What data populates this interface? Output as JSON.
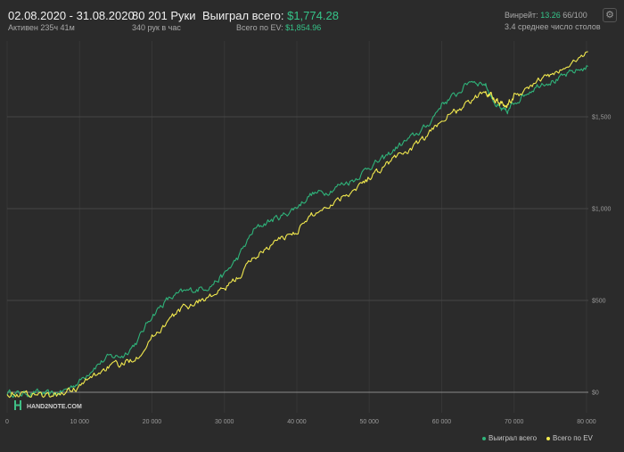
{
  "header": {
    "date_range": "02.08.2020 - 31.08.2020",
    "active_time": "Активен 235ч 41м",
    "hands": "80 201 Руки",
    "hands_per_hour": "340 рук в час",
    "won_label": "Выиграл всего:",
    "won_value": "$1,774.28",
    "ev_label": "Всего по EV:",
    "ev_value": "$1,854.96",
    "winrate_label": "Винрейт:",
    "winrate_value": "13.26",
    "winrate_suffix": "66/100",
    "tables": "3.4 среднее число столов",
    "settings_icon": "gear-icon"
  },
  "watermark": {
    "text": "HAND2NOTE.COM",
    "icon": "h2n-logo-icon"
  },
  "colors": {
    "won": "#2fb37a",
    "ev": "#f2e94e",
    "background": "#2b2b2b",
    "grid": "#3a3a3a"
  },
  "chart_data": {
    "type": "line",
    "x_ticks": [
      0,
      10000,
      20000,
      30000,
      40000,
      50000,
      60000,
      70000,
      80000
    ],
    "x_tick_labels": [
      "0",
      "10 000",
      "20 000",
      "30 000",
      "40 000",
      "50 000",
      "60 000",
      "70 000",
      "80 000"
    ],
    "y_ticks": [
      0,
      500,
      1000,
      1500
    ],
    "y_tick_labels": [
      "$0",
      "$500",
      "$1,000",
      "$1,500"
    ],
    "xlim": [
      0,
      80201
    ],
    "ylim": [
      -50,
      1900
    ],
    "grid": true,
    "legend_position": "bottom-right",
    "series": [
      {
        "name": "Выиграл всего",
        "x": [
          0,
          2000,
          4000,
          6000,
          8000,
          10000,
          12000,
          14000,
          16000,
          18000,
          20000,
          22000,
          24000,
          26000,
          28000,
          30000,
          32000,
          34000,
          36000,
          38000,
          40000,
          42000,
          44000,
          46000,
          48000,
          50000,
          52000,
          54000,
          56000,
          58000,
          60000,
          62000,
          64000,
          66000,
          67000,
          68000,
          69000,
          70000,
          72000,
          74000,
          76000,
          78000,
          80201
        ],
        "y": [
          0,
          -10,
          0,
          -15,
          10,
          60,
          140,
          190,
          200,
          280,
          420,
          500,
          540,
          560,
          580,
          640,
          740,
          880,
          930,
          960,
          1010,
          1080,
          1090,
          1130,
          1160,
          1230,
          1270,
          1340,
          1390,
          1450,
          1570,
          1620,
          1700,
          1680,
          1600,
          1540,
          1520,
          1580,
          1640,
          1690,
          1700,
          1740,
          1774.28
        ]
      },
      {
        "name": "Всего по EV",
        "x": [
          0,
          2000,
          4000,
          6000,
          8000,
          10000,
          12000,
          14000,
          16000,
          18000,
          20000,
          22000,
          24000,
          26000,
          28000,
          30000,
          32000,
          34000,
          36000,
          38000,
          40000,
          42000,
          44000,
          46000,
          48000,
          50000,
          52000,
          54000,
          56000,
          58000,
          60000,
          62000,
          64000,
          66000,
          67000,
          68000,
          69000,
          70000,
          72000,
          74000,
          76000,
          78000,
          80201
        ],
        "y": [
          0,
          -10,
          -5,
          -25,
          0,
          30,
          90,
          140,
          150,
          200,
          300,
          380,
          450,
          490,
          520,
          560,
          630,
          730,
          790,
          840,
          880,
          960,
          1010,
          1060,
          1110,
          1170,
          1230,
          1290,
          1330,
          1390,
          1490,
          1530,
          1580,
          1640,
          1620,
          1580,
          1560,
          1610,
          1660,
          1710,
          1740,
          1790,
          1854.96
        ]
      }
    ]
  }
}
